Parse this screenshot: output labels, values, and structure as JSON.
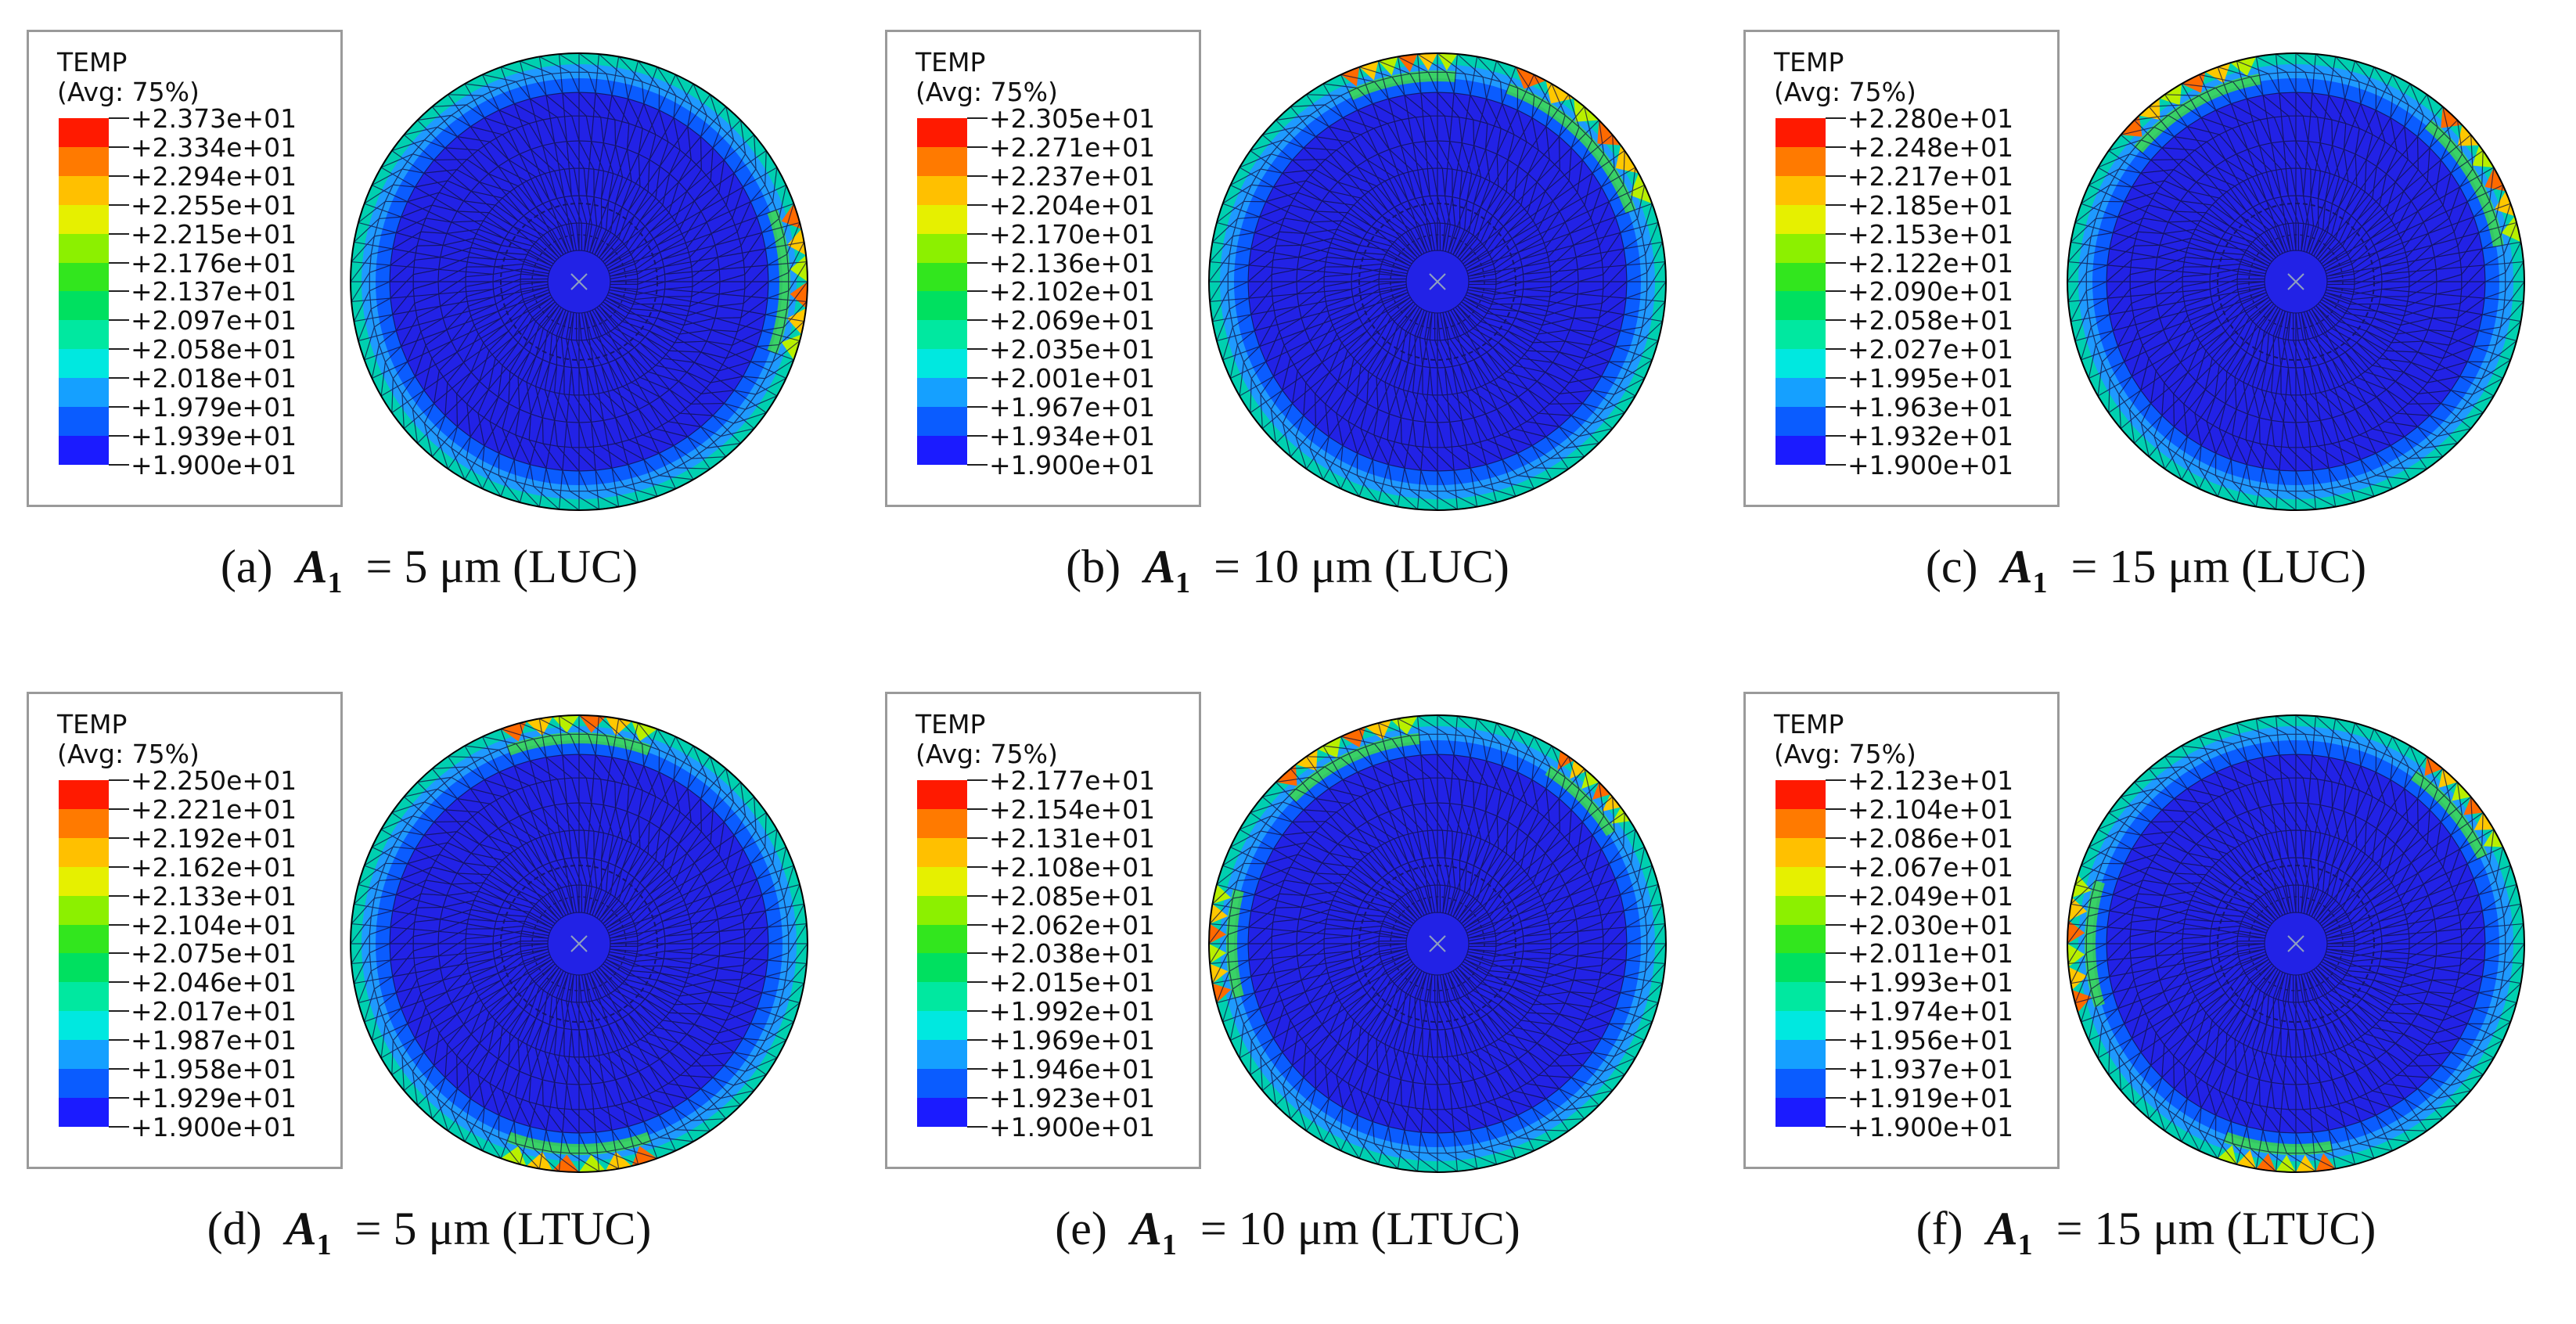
{
  "legend_palette": [
    "#1b1bff",
    "#0a5cff",
    "#15a0ff",
    "#00e8e0",
    "#00e8a0",
    "#00e060",
    "#32e61e",
    "#8cf000",
    "#e6f000",
    "#ffc000",
    "#ff7a00",
    "#ff1a00"
  ],
  "panels": [
    {
      "id": "a",
      "legend_title_1": "TEMP",
      "legend_title_2": "(Avg: 75%)",
      "legend_values": [
        "+2.373e+01",
        "+2.334e+01",
        "+2.294e+01",
        "+2.255e+01",
        "+2.215e+01",
        "+2.176e+01",
        "+2.137e+01",
        "+2.097e+01",
        "+2.058e+01",
        "+2.018e+01",
        "+1.979e+01",
        "+1.939e+01",
        "+1.900e+01"
      ],
      "caption_prefix": "(a)",
      "symbol": "A",
      "subscript": "1",
      "caption_suffix": "= 5 μm (LUC)"
    },
    {
      "id": "b",
      "legend_title_1": "TEMP",
      "legend_title_2": "(Avg: 75%)",
      "legend_values": [
        "+2.305e+01",
        "+2.271e+01",
        "+2.237e+01",
        "+2.204e+01",
        "+2.170e+01",
        "+2.136e+01",
        "+2.102e+01",
        "+2.069e+01",
        "+2.035e+01",
        "+2.001e+01",
        "+1.967e+01",
        "+1.934e+01",
        "+1.900e+01"
      ],
      "caption_prefix": "(b)",
      "symbol": "A",
      "subscript": "1",
      "caption_suffix": "= 10 μm (LUC)"
    },
    {
      "id": "c",
      "legend_title_1": "TEMP",
      "legend_title_2": "(Avg: 75%)",
      "legend_values": [
        "+2.280e+01",
        "+2.248e+01",
        "+2.217e+01",
        "+2.185e+01",
        "+2.153e+01",
        "+2.122e+01",
        "+2.090e+01",
        "+2.058e+01",
        "+2.027e+01",
        "+1.995e+01",
        "+1.963e+01",
        "+1.932e+01",
        "+1.900e+01"
      ],
      "caption_prefix": "(c)",
      "symbol": "A",
      "subscript": "1",
      "caption_suffix": "= 15 μm (LUC)"
    },
    {
      "id": "d",
      "legend_title_1": "TEMP",
      "legend_title_2": "(Avg: 75%)",
      "legend_values": [
        "+2.250e+01",
        "+2.221e+01",
        "+2.192e+01",
        "+2.162e+01",
        "+2.133e+01",
        "+2.104e+01",
        "+2.075e+01",
        "+2.046e+01",
        "+2.017e+01",
        "+1.987e+01",
        "+1.958e+01",
        "+1.929e+01",
        "+1.900e+01"
      ],
      "caption_prefix": "(d)",
      "symbol": "A",
      "subscript": "1",
      "caption_suffix": "= 5 μm (LTUC)"
    },
    {
      "id": "e",
      "legend_title_1": "TEMP",
      "legend_title_2": "(Avg: 75%)",
      "legend_values": [
        "+2.177e+01",
        "+2.154e+01",
        "+2.131e+01",
        "+2.108e+01",
        "+2.085e+01",
        "+2.062e+01",
        "+2.038e+01",
        "+2.015e+01",
        "+1.992e+01",
        "+1.969e+01",
        "+1.946e+01",
        "+1.923e+01",
        "+1.900e+01"
      ],
      "caption_prefix": "(e)",
      "symbol": "A",
      "subscript": "1",
      "caption_suffix": "= 10 μm (LTUC)"
    },
    {
      "id": "f",
      "legend_title_1": "TEMP",
      "legend_title_2": "(Avg: 75%)",
      "legend_values": [
        "+2.123e+01",
        "+2.104e+01",
        "+2.086e+01",
        "+2.067e+01",
        "+2.049e+01",
        "+2.030e+01",
        "+2.011e+01",
        "+1.993e+01",
        "+1.974e+01",
        "+1.956e+01",
        "+1.937e+01",
        "+1.919e+01",
        "+1.900e+01"
      ],
      "caption_prefix": "(f)",
      "symbol": "A",
      "subscript": "1",
      "caption_suffix": "= 15 μm (LTUC)"
    }
  ]
}
